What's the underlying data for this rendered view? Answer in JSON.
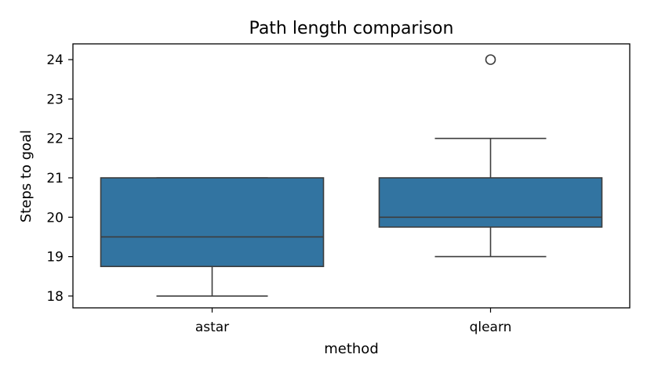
{
  "chart_data": {
    "type": "box",
    "title": "Path length comparison",
    "xlabel": "method",
    "ylabel": "Steps to goal",
    "categories": [
      "astar",
      "qlearn"
    ],
    "ylim": [
      17.7,
      24.4
    ],
    "yticks": [
      18,
      19,
      20,
      21,
      22,
      23,
      24
    ],
    "grid": false,
    "box_color": "#3274a1",
    "line_color": "#3d3d3d",
    "boxes": [
      {
        "name": "astar",
        "whisker_low": 18,
        "q1": 18.75,
        "median": 19.5,
        "q3": 21,
        "whisker_high": 21,
        "outliers": []
      },
      {
        "name": "qlearn",
        "whisker_low": 19,
        "q1": 19.75,
        "median": 20,
        "q3": 21,
        "whisker_high": 22,
        "outliers": [
          24
        ]
      }
    ]
  }
}
